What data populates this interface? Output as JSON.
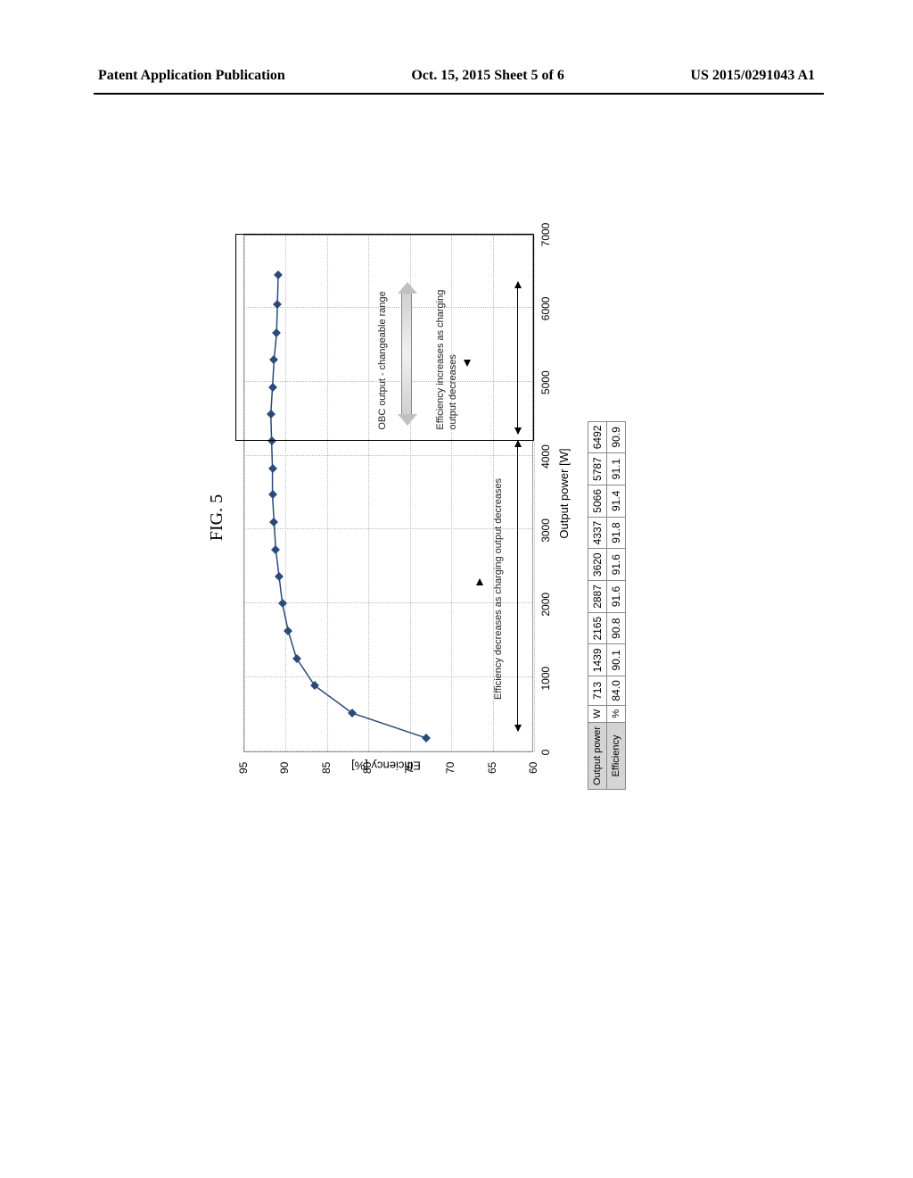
{
  "header": {
    "left": "Patent Application Publication",
    "center": "Oct. 15, 2015  Sheet 5 of 6",
    "right": "US 2015/0291043 A1"
  },
  "figureCaption": "FIG. 5",
  "chart": {
    "type": "line",
    "xlabel": "Output power [W]",
    "ylabel": "Efficiency [%]",
    "xlim": [
      0,
      7000
    ],
    "ylim": [
      60,
      95
    ],
    "xticks": [
      0,
      1000,
      2000,
      3000,
      4000,
      5000,
      6000,
      7000
    ],
    "yticks": [
      60,
      65,
      70,
      75,
      80,
      85,
      90,
      95
    ],
    "grid": true,
    "background_color": "#ffffff",
    "grid_color": "#bbbbbb",
    "line_color": "#2a4a7a",
    "marker_color": "#2a4a7a",
    "marker_style": "diamond",
    "marker_size": 7,
    "line_width": 1.5,
    "series_x": [
      180,
      520,
      890,
      1260,
      1630,
      2000,
      2370,
      2730,
      3100,
      3470,
      3820,
      4200,
      4560,
      4920,
      5300,
      5660,
      6050,
      6450
    ],
    "series_y": [
      73.0,
      82.0,
      86.5,
      88.7,
      89.7,
      90.4,
      90.8,
      91.2,
      91.4,
      91.6,
      91.6,
      91.7,
      91.8,
      91.6,
      91.4,
      91.1,
      91.0,
      90.9
    ],
    "highlight_box": {
      "x_from": 4200,
      "x_to": 7000,
      "y_from": 60,
      "y_to": 95
    },
    "annotations": {
      "obc_label": "OBC output - changeable range",
      "eff_decrease": "Efficiency decreases as charging output decreases",
      "eff_increase": "Efficiency increases as charging\noutput decreases"
    }
  },
  "table": {
    "header_output": "Output power",
    "header_efficiency": "Efficiency",
    "unit_output": "W",
    "unit_efficiency": "%",
    "output_power": [
      "713",
      "1439",
      "2165",
      "2887",
      "3620",
      "4337",
      "5066",
      "5787",
      "6492"
    ],
    "efficiency": [
      "84.0",
      "90.1",
      "90.8",
      "91.6",
      "91.6",
      "91.8",
      "91.4",
      "91.1",
      "90.9"
    ]
  }
}
